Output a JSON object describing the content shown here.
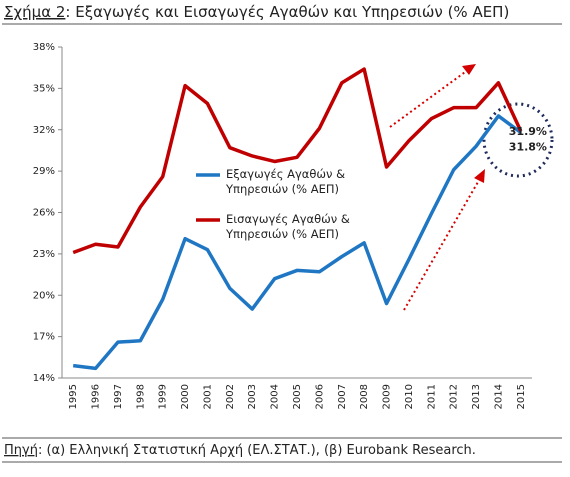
{
  "chart_data": {
    "type": "line",
    "figure_label": "Σχήμα 2",
    "title": ": Εξαγωγές και Εισαγωγές Αγαθών και Υπηρεσιών (% ΑΕΠ)",
    "source_label": "Πηγή",
    "source": ": (α) Ελληνική Στατιστική Αρχή (ΕΛ.ΣΤΑΤ.), (β) Eurobank Research.",
    "categories": [
      "1995",
      "1996",
      "1997",
      "1998",
      "1999",
      "2000",
      "2001",
      "2002",
      "2003",
      "2004",
      "2005",
      "2006",
      "2007",
      "2008",
      "2009",
      "2010",
      "2011",
      "2012",
      "2013",
      "2014",
      "2015"
    ],
    "series": [
      {
        "name": "Εξαγωγές Αγαθών & Υπηρεσιών (% ΑΕΠ)",
        "color": "#1f77c4",
        "values": [
          14.9,
          14.7,
          16.6,
          16.7,
          19.7,
          24.1,
          23.3,
          20.5,
          19.0,
          21.2,
          21.8,
          21.7,
          22.8,
          23.8,
          19.4,
          22.6,
          25.9,
          29.1,
          30.8,
          33.0,
          31.8
        ],
        "value_labels": [
          null,
          null,
          null,
          null,
          null,
          null,
          null,
          null,
          null,
          null,
          null,
          null,
          null,
          null,
          null,
          null,
          null,
          null,
          null,
          null,
          "31.8%"
        ]
      },
      {
        "name": "Εισαγωγές Αγαθών & Υπηρεσιών (% ΑΕΠ)",
        "color": "#c00000",
        "values": [
          23.1,
          23.7,
          23.5,
          26.4,
          28.6,
          35.2,
          33.9,
          30.7,
          30.1,
          29.7,
          30.0,
          32.1,
          35.4,
          36.4,
          29.3,
          31.2,
          32.8,
          33.6,
          33.6,
          35.4,
          31.9
        ],
        "value_labels": [
          null,
          null,
          null,
          null,
          null,
          null,
          null,
          null,
          null,
          null,
          null,
          null,
          null,
          null,
          null,
          null,
          null,
          null,
          null,
          null,
          "31.9%"
        ]
      }
    ],
    "ylim": [
      14,
      38
    ],
    "yticks": [
      {
        "value": 14,
        "label": "14%"
      },
      {
        "value": 17,
        "label": "17%"
      },
      {
        "value": 20,
        "label": "20%"
      },
      {
        "value": 23,
        "label": "23%"
      },
      {
        "value": 26,
        "label": "26%"
      },
      {
        "value": 29,
        "label": "29%"
      },
      {
        "value": 32,
        "label": "32%"
      },
      {
        "value": 35,
        "label": "35%"
      },
      {
        "value": 38,
        "label": "38%"
      }
    ],
    "grid": false
  }
}
